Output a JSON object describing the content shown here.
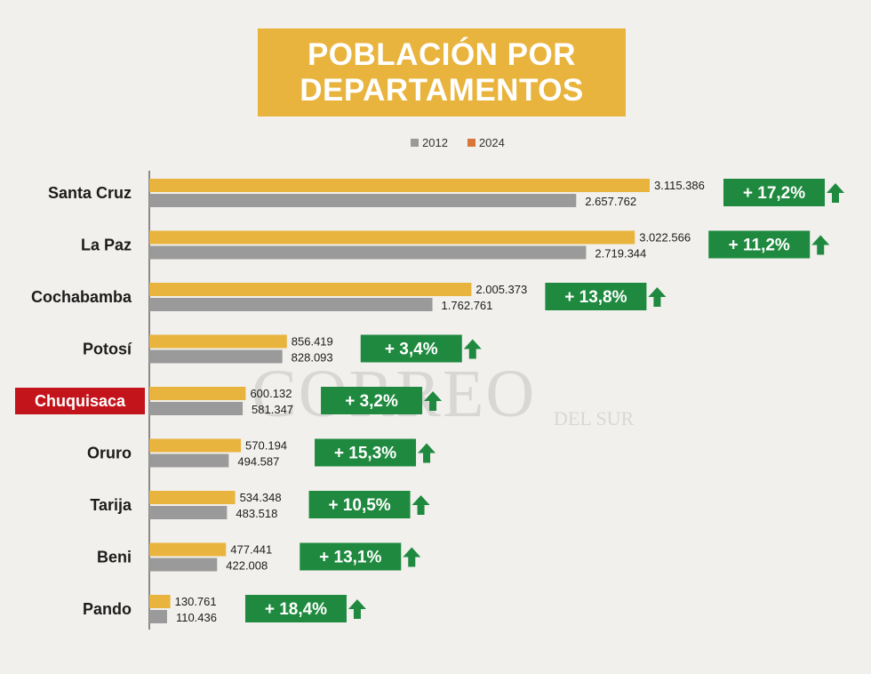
{
  "title": {
    "line1": "POBLACIÓN POR",
    "line2": "DEPARTAMENTOS"
  },
  "watermark": {
    "main": "CORREO",
    "sub": "DEL SUR"
  },
  "colors": {
    "background": "#f1f0ec",
    "bar_2024": "#e9b43d",
    "bar_2012": "#9a9a9a",
    "legend_2024": "#d9763a",
    "badge": "#1f8a3f",
    "arrow": "#1f8a3f",
    "highlight": "#c4141b"
  },
  "legend": [
    {
      "label": "2012",
      "color": "#9a9a9a"
    },
    {
      "label": "2024",
      "color": "#d9763a"
    }
  ],
  "chart_data": {
    "type": "bar",
    "orientation": "horizontal",
    "categories": [
      "Santa Cruz",
      "La Paz",
      "Cochabamba",
      "Potosí",
      "Chuquisaca",
      "Oruro",
      "Tarija",
      "Beni",
      "Pando"
    ],
    "highlighted_category": "Chuquisaca",
    "series": [
      {
        "name": "2024",
        "values": [
          3115386,
          3022566,
          2005373,
          856419,
          600132,
          570194,
          534348,
          477441,
          130761
        ],
        "labels": [
          "3.115.386",
          "3.022.566",
          "2.005.373",
          "856.419",
          "600.132",
          "570.194",
          "534.348",
          "477.441",
          "130.761"
        ]
      },
      {
        "name": "2012",
        "values": [
          2657762,
          2719344,
          1762761,
          828093,
          581347,
          494587,
          483518,
          422008,
          110436
        ],
        "labels": [
          "2.657.762",
          "2.719.344",
          "1.762.761",
          "828.093",
          "581.347",
          "494.587",
          "483.518",
          "422.008",
          "110.436"
        ]
      }
    ],
    "growth_labels": [
      "+ 17,2%",
      "+ 11,2%",
      "+ 13,8%",
      "+ 3,4%",
      "+ 3,2%",
      "+ 15,3%",
      "+ 10,5%",
      "+ 13,1%",
      "+ 18,4%"
    ],
    "xlim": [
      0,
      3115386
    ],
    "grid": false,
    "legend_position": "top"
  }
}
